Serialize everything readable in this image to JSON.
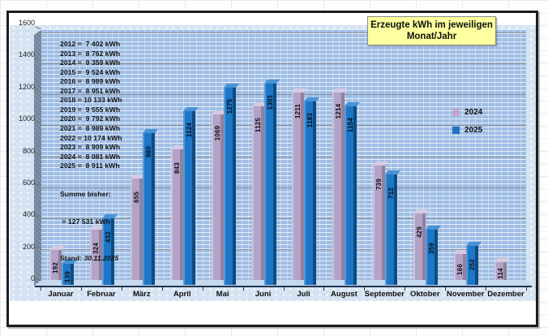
{
  "title_box": {
    "line1": "Erzeugte kWh im jeweiligen",
    "line2": "Monat/Jahr",
    "bg_color": "#feff9e"
  },
  "legend": [
    {
      "label": "2024",
      "color": "#c4a6cd"
    },
    {
      "label": "2025",
      "color": "#1f72c2"
    }
  ],
  "annual_summary": {
    "lines": [
      "2012 =  7 402 kWh",
      "2013 =  8 762 kWh",
      "2014 =  9 359 kWh",
      "2015 =  9 524 kWh",
      "2016 =  8 989 kWh",
      "2017 =  8 951 kWh",
      "2018 = 10 133 kWh",
      "2019 =  9 555 kWh",
      "2020 =  9 792 kWh",
      "2021 =  8 989 kWh",
      "2022 = 10 174 kWh",
      "2023 =  8 909 kWh",
      "2024 =  8 081 kWh",
      "2025 =  8 911 kWh"
    ],
    "sum_label": "Summe bisher:",
    "sum_value": " = 127 531 kWh",
    "stand_label": "Stand: ",
    "stand_value": "30.11.2025"
  },
  "chart_data": {
    "type": "bar",
    "title": "Erzeugte kWh im jeweiligen Monat/Jahr",
    "xlabel": "",
    "ylabel": "",
    "ylim": [
      0,
      1600
    ],
    "ytick_step": 200,
    "yticks": [
      0,
      200,
      400,
      600,
      800,
      1000,
      1200,
      1400,
      1600
    ],
    "grid": true,
    "legend_position": "right-middle",
    "categories": [
      "Januar",
      "Februar",
      "März",
      "April",
      "Mai",
      "Juni",
      "Juli",
      "August",
      "September",
      "Oktober",
      "November",
      "Dezember"
    ],
    "series": [
      {
        "name": "2024",
        "color": "#b3a4c7",
        "values": [
          192,
          324,
          655,
          843,
          1069,
          1125,
          1211,
          1214,
          739,
          429,
          166,
          114
        ]
      },
      {
        "name": "2025",
        "color": "#1b74c5",
        "values": [
          139,
          432,
          980,
          1124,
          1275,
          1301,
          1183,
          1154,
          712,
          359,
          252,
          null
        ]
      }
    ]
  }
}
